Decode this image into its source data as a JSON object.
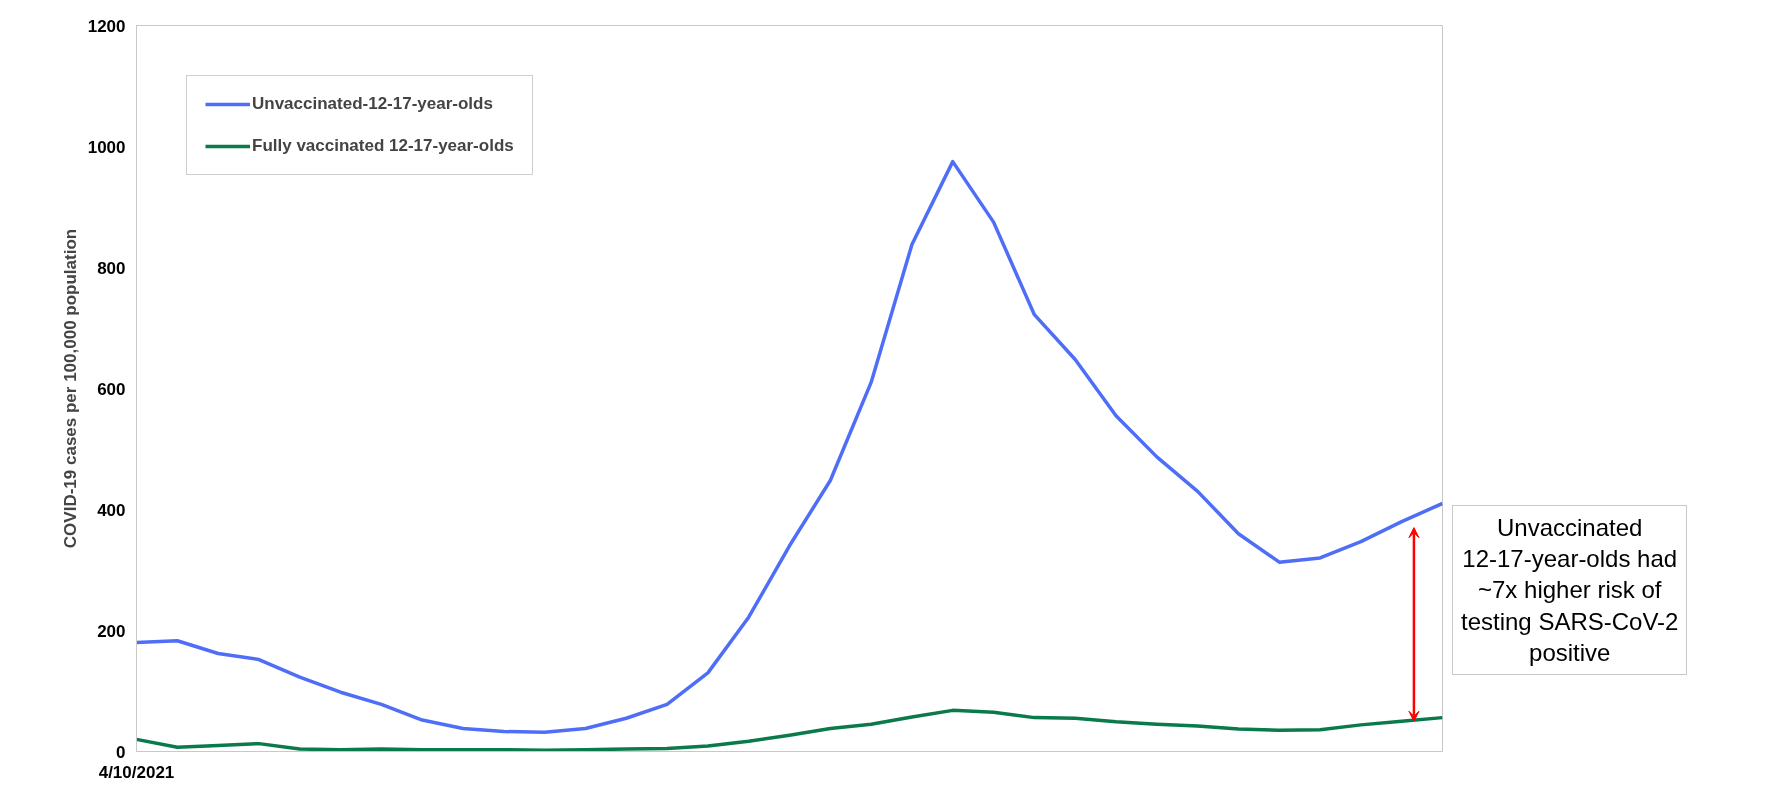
{
  "chart_data": {
    "type": "line",
    "ylabel": "COVID-19 cases per 100,000 population",
    "categories": [
      "4/10/2021",
      null,
      null,
      null,
      null,
      null,
      null,
      null,
      null,
      null,
      null,
      null,
      null,
      null,
      null,
      null,
      null,
      null,
      null,
      null,
      null,
      null,
      null,
      null,
      null,
      null,
      null,
      null,
      null,
      null,
      null,
      null,
      null
    ],
    "series": [
      {
        "name": "Unvaccinated-12-17-year-olds",
        "color": "#4f6ef7",
        "values": [
          180,
          183,
          162,
          152,
          123,
          98,
          78,
          52,
          38,
          33,
          32,
          38,
          55,
          78,
          130,
          222,
          340,
          448,
          610,
          838,
          975,
          875,
          722,
          648,
          555,
          487,
          430,
          360,
          313,
          320,
          347,
          380,
          410
        ]
      },
      {
        "name": "Fully vaccinated 12-17-year-olds",
        "color": "#0b7a4b",
        "values": [
          20,
          7,
          10,
          13,
          4,
          3,
          4,
          3,
          3,
          3,
          2,
          3,
          4,
          5,
          9,
          17,
          27,
          38,
          45,
          57,
          68,
          65,
          56,
          55,
          49,
          45,
          42,
          37,
          35,
          36,
          44,
          50,
          56
        ]
      }
    ],
    "ylim": [
      0,
      1200
    ],
    "yticks": [
      0,
      200,
      400,
      600,
      800,
      1000,
      1200
    ],
    "annotations": [
      "Unvaccinated 12-17-year-olds had ~7x higher risk of testing SARS-CoV-2 positive"
    ],
    "legend": "top left",
    "grid": false,
    "marker": "none",
    "line_style": "solid"
  }
}
